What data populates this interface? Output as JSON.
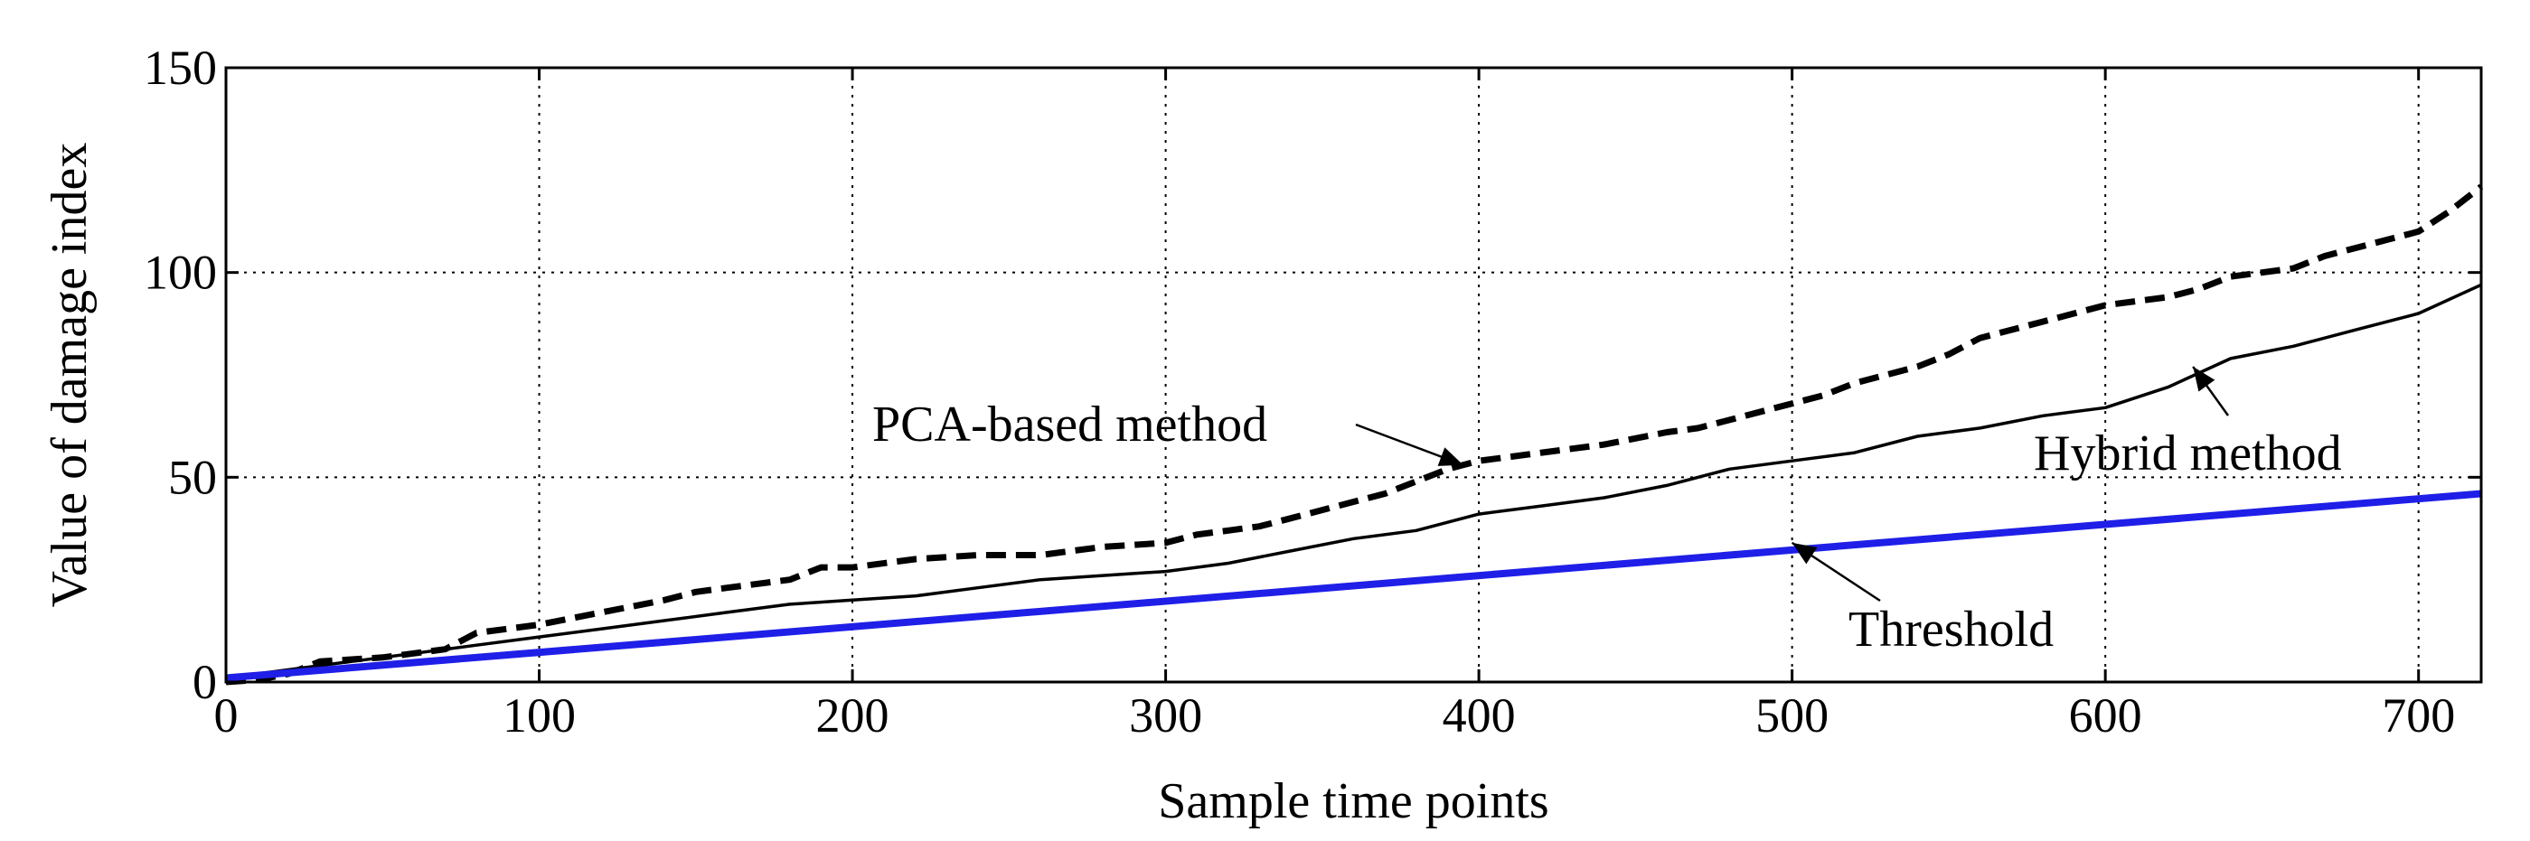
{
  "chart_data": {
    "type": "line",
    "title": "",
    "xlabel": "Sample time points",
    "ylabel": "Value of damage index",
    "xlim": [
      0,
      720
    ],
    "ylim": [
      0,
      150
    ],
    "xticks": [
      0,
      100,
      200,
      300,
      400,
      500,
      600,
      700
    ],
    "yticks": [
      0,
      50,
      100,
      150
    ],
    "grid": true,
    "series": [
      {
        "name": "PCA-based method",
        "style": "dashed",
        "color": "#000000",
        "x": [
          0,
          10,
          20,
          30,
          50,
          70,
          80,
          90,
          100,
          120,
          140,
          150,
          160,
          180,
          190,
          200,
          220,
          240,
          260,
          270,
          280,
          300,
          310,
          320,
          330,
          340,
          350,
          360,
          370,
          380,
          390,
          400,
          410,
          420,
          440,
          460,
          470,
          480,
          500,
          510,
          520,
          540,
          550,
          560,
          580,
          590,
          600,
          610,
          620,
          630,
          640,
          650,
          660,
          670,
          690,
          700,
          710,
          720
        ],
        "y": [
          0,
          0.5,
          2,
          5,
          6,
          8,
          12,
          13,
          14,
          17,
          20,
          22,
          23,
          25,
          28,
          28,
          30,
          31,
          31,
          32,
          33,
          34,
          36,
          37,
          38,
          40,
          42,
          44,
          46,
          49,
          52,
          54,
          55,
          56,
          58,
          61,
          62,
          64,
          68,
          70,
          73,
          77,
          80,
          84,
          88,
          90,
          92,
          93,
          94,
          96,
          99,
          100,
          101,
          104,
          108,
          110,
          115,
          121
        ]
      },
      {
        "name": "Hybrid method",
        "style": "solid",
        "color": "#000000",
        "x": [
          0,
          20,
          40,
          60,
          80,
          100,
          120,
          140,
          160,
          180,
          200,
          220,
          240,
          260,
          280,
          300,
          320,
          340,
          360,
          380,
          400,
          420,
          440,
          460,
          480,
          500,
          520,
          540,
          560,
          580,
          600,
          620,
          640,
          660,
          680,
          700,
          720
        ],
        "y": [
          1,
          3,
          5,
          7,
          9,
          11,
          13,
          15,
          17,
          19,
          20,
          21,
          23,
          25,
          26,
          27,
          29,
          32,
          35,
          37,
          41,
          43,
          45,
          48,
          52,
          54,
          56,
          60,
          62,
          65,
          67,
          72,
          79,
          82,
          86,
          90,
          97
        ]
      },
      {
        "name": "Threshold",
        "style": "solid",
        "color": "#1f1fe8",
        "x": [
          0,
          720
        ],
        "y": [
          1,
          46
        ]
      }
    ],
    "annotations": [
      {
        "text": "PCA-based method",
        "points_to": [
          395,
          53
        ]
      },
      {
        "text": "Hybrid method",
        "points_to": [
          628,
          77
        ]
      },
      {
        "text": "Threshold",
        "points_to": [
          500,
          34
        ]
      }
    ]
  }
}
